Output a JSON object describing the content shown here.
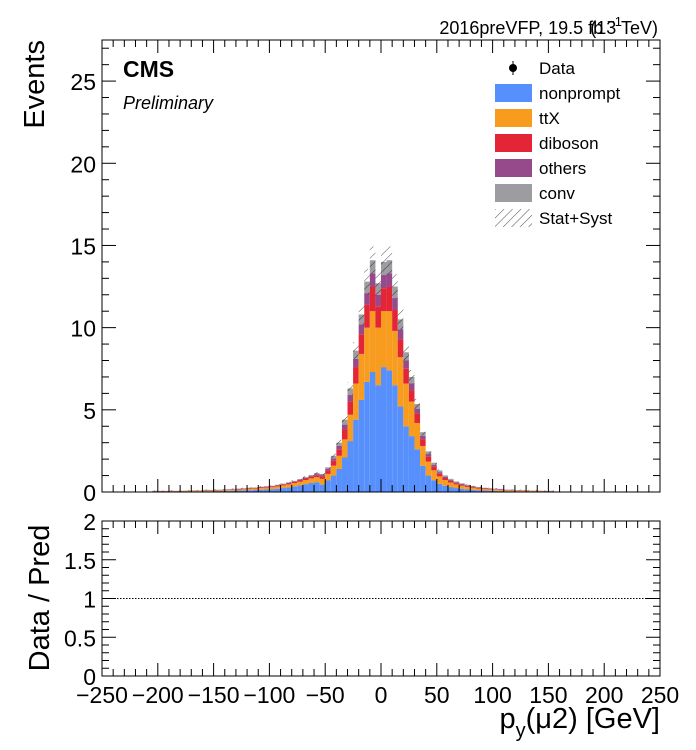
{
  "header": {
    "lumi_prefix": "2016preVFP, 19.5 fb",
    "lumi_exp": "−1",
    "lumi_suffix": "(13 TeV)",
    "experiment": "CMS",
    "status": "Preliminary"
  },
  "chart_data": [
    {
      "type": "bar",
      "stacked": true,
      "ylabel": "Events",
      "ylim": [
        0,
        27.5
      ],
      "xlim": [
        -250,
        250
      ],
      "bin_width": 5,
      "grid": false,
      "legend_position": "top-right",
      "legend": [
        {
          "label": "Data",
          "kind": "marker",
          "color": "#000000"
        },
        {
          "label": "nonprompt",
          "kind": "fill",
          "color": "#5790fc"
        },
        {
          "label": "ttX",
          "kind": "fill",
          "color": "#f89c20"
        },
        {
          "label": "diboson",
          "kind": "fill",
          "color": "#e42536"
        },
        {
          "label": "others",
          "kind": "fill",
          "color": "#964a8b"
        },
        {
          "label": "conv",
          "kind": "fill",
          "color": "#9c9ca1"
        },
        {
          "label": "Stat+Syst",
          "kind": "hatch",
          "color": "#000000"
        }
      ],
      "yticks": [
        "0",
        "5",
        "10",
        "15",
        "20",
        "25"
      ],
      "bin_low_edges": [
        -205,
        -200,
        -195,
        -190,
        -185,
        -180,
        -175,
        -170,
        -165,
        -160,
        -155,
        -150,
        -145,
        -140,
        -135,
        -130,
        -125,
        -120,
        -115,
        -110,
        -105,
        -100,
        -95,
        -90,
        -85,
        -80,
        -75,
        -70,
        -65,
        -60,
        -55,
        -50,
        -45,
        -40,
        -35,
        -30,
        -25,
        -20,
        -15,
        -10,
        -5,
        0,
        5,
        10,
        15,
        20,
        25,
        30,
        35,
        40,
        45,
        50,
        55,
        60,
        65,
        70,
        75,
        80,
        85,
        90,
        95,
        100,
        105,
        110,
        115,
        120,
        125,
        130,
        135,
        140,
        145,
        150
      ],
      "series": [
        {
          "name": "nonprompt",
          "color": "#5790fc",
          "values": [
            0.02,
            0.02,
            0.02,
            0.03,
            0.02,
            0.03,
            0.03,
            0.04,
            0.04,
            0.05,
            0.05,
            0.06,
            0.06,
            0.07,
            0.08,
            0.09,
            0.1,
            0.11,
            0.12,
            0.14,
            0.15,
            0.17,
            0.2,
            0.24,
            0.28,
            0.34,
            0.4,
            0.48,
            0.55,
            0.6,
            0.45,
            0.7,
            1.0,
            1.4,
            2.1,
            3.1,
            4.4,
            5.6,
            6.7,
            7.3,
            6.5,
            7.6,
            7.4,
            6.5,
            5.2,
            4.0,
            3.4,
            2.6,
            1.6,
            1.0,
            0.72,
            0.5,
            0.38,
            0.3,
            0.24,
            0.2,
            0.16,
            0.13,
            0.11,
            0.09,
            0.08,
            0.07,
            0.06,
            0.05,
            0.05,
            0.04,
            0.04,
            0.03,
            0.03,
            0.02,
            0.02,
            0.02
          ]
        },
        {
          "name": "ttX",
          "color": "#f89c20",
          "values": [
            0.02,
            0.02,
            0.02,
            0.02,
            0.02,
            0.02,
            0.03,
            0.03,
            0.03,
            0.04,
            0.04,
            0.04,
            0.05,
            0.05,
            0.06,
            0.06,
            0.07,
            0.08,
            0.09,
            0.1,
            0.11,
            0.12,
            0.14,
            0.16,
            0.18,
            0.2,
            0.22,
            0.25,
            0.28,
            0.3,
            0.35,
            0.4,
            0.6,
            0.8,
            1.1,
            1.6,
            2.2,
            2.8,
            3.3,
            3.7,
            3.5,
            3.4,
            3.6,
            3.3,
            3.0,
            2.6,
            2.1,
            1.6,
            1.2,
            0.85,
            0.6,
            0.45,
            0.35,
            0.28,
            0.22,
            0.18,
            0.15,
            0.12,
            0.1,
            0.09,
            0.08,
            0.07,
            0.06,
            0.05,
            0.05,
            0.04,
            0.04,
            0.03,
            0.03,
            0.03,
            0.02,
            0.02
          ]
        },
        {
          "name": "diboson",
          "color": "#e42536",
          "values": [
            0.01,
            0.01,
            0.01,
            0.01,
            0.01,
            0.01,
            0.01,
            0.01,
            0.01,
            0.02,
            0.02,
            0.02,
            0.02,
            0.02,
            0.02,
            0.03,
            0.03,
            0.03,
            0.03,
            0.04,
            0.04,
            0.04,
            0.05,
            0.05,
            0.06,
            0.07,
            0.08,
            0.09,
            0.1,
            0.12,
            0.15,
            0.2,
            0.3,
            0.4,
            0.6,
            0.8,
            1.0,
            1.2,
            1.4,
            1.5,
            1.3,
            1.4,
            1.5,
            1.3,
            1.1,
            0.9,
            0.7,
            0.55,
            0.4,
            0.3,
            0.22,
            0.16,
            0.12,
            0.1,
            0.08,
            0.07,
            0.06,
            0.05,
            0.04,
            0.04,
            0.03,
            0.03,
            0.03,
            0.02,
            0.02,
            0.02,
            0.02,
            0.01,
            0.01,
            0.01,
            0.01,
            0.01
          ]
        },
        {
          "name": "others",
          "color": "#964a8b",
          "values": [
            0.01,
            0.01,
            0.01,
            0.01,
            0.01,
            0.01,
            0.01,
            0.01,
            0.01,
            0.01,
            0.01,
            0.01,
            0.01,
            0.02,
            0.02,
            0.02,
            0.02,
            0.02,
            0.02,
            0.02,
            0.03,
            0.03,
            0.03,
            0.03,
            0.04,
            0.04,
            0.05,
            0.05,
            0.06,
            0.07,
            0.08,
            0.1,
            0.15,
            0.2,
            0.3,
            0.4,
            0.5,
            0.6,
            0.7,
            0.8,
            0.7,
            0.8,
            0.8,
            0.7,
            0.6,
            0.5,
            0.4,
            0.3,
            0.22,
            0.16,
            0.12,
            0.1,
            0.08,
            0.06,
            0.05,
            0.04,
            0.04,
            0.03,
            0.03,
            0.02,
            0.02,
            0.02,
            0.02,
            0.02,
            0.01,
            0.01,
            0.01,
            0.01,
            0.01,
            0.01,
            0.01,
            0.01
          ]
        },
        {
          "name": "conv",
          "color": "#9c9ca1",
          "values": [
            0.01,
            0.01,
            0.01,
            0.01,
            0.01,
            0.01,
            0.01,
            0.01,
            0.01,
            0.01,
            0.01,
            0.01,
            0.01,
            0.01,
            0.01,
            0.01,
            0.01,
            0.02,
            0.02,
            0.02,
            0.02,
            0.02,
            0.02,
            0.03,
            0.03,
            0.03,
            0.04,
            0.04,
            0.05,
            0.06,
            0.07,
            0.1,
            0.15,
            0.2,
            0.3,
            0.4,
            0.5,
            0.6,
            0.7,
            0.8,
            0.7,
            0.8,
            0.8,
            0.7,
            0.6,
            0.5,
            0.4,
            0.3,
            0.22,
            0.16,
            0.12,
            0.1,
            0.08,
            0.06,
            0.05,
            0.04,
            0.03,
            0.03,
            0.03,
            0.02,
            0.02,
            0.02,
            0.02,
            0.01,
            0.01,
            0.01,
            0.01,
            0.01,
            0.01,
            0.01,
            0.01,
            0.01
          ]
        }
      ]
    },
    {
      "type": "line",
      "ylabel": "Data / Pred",
      "xlabel_main": "p",
      "xlabel_sub": "y",
      "xlabel_rest": "(μ2) [GeV]",
      "ylim": [
        0,
        2
      ],
      "xlim": [
        -250,
        250
      ],
      "reference_line": 1,
      "yticks": [
        "0",
        "0.5",
        "1",
        "1.5",
        "2"
      ],
      "xticks": [
        "−250",
        "−200",
        "−150",
        "−100",
        "−50",
        "0",
        "50",
        "100",
        "150",
        "200",
        "250"
      ]
    }
  ]
}
